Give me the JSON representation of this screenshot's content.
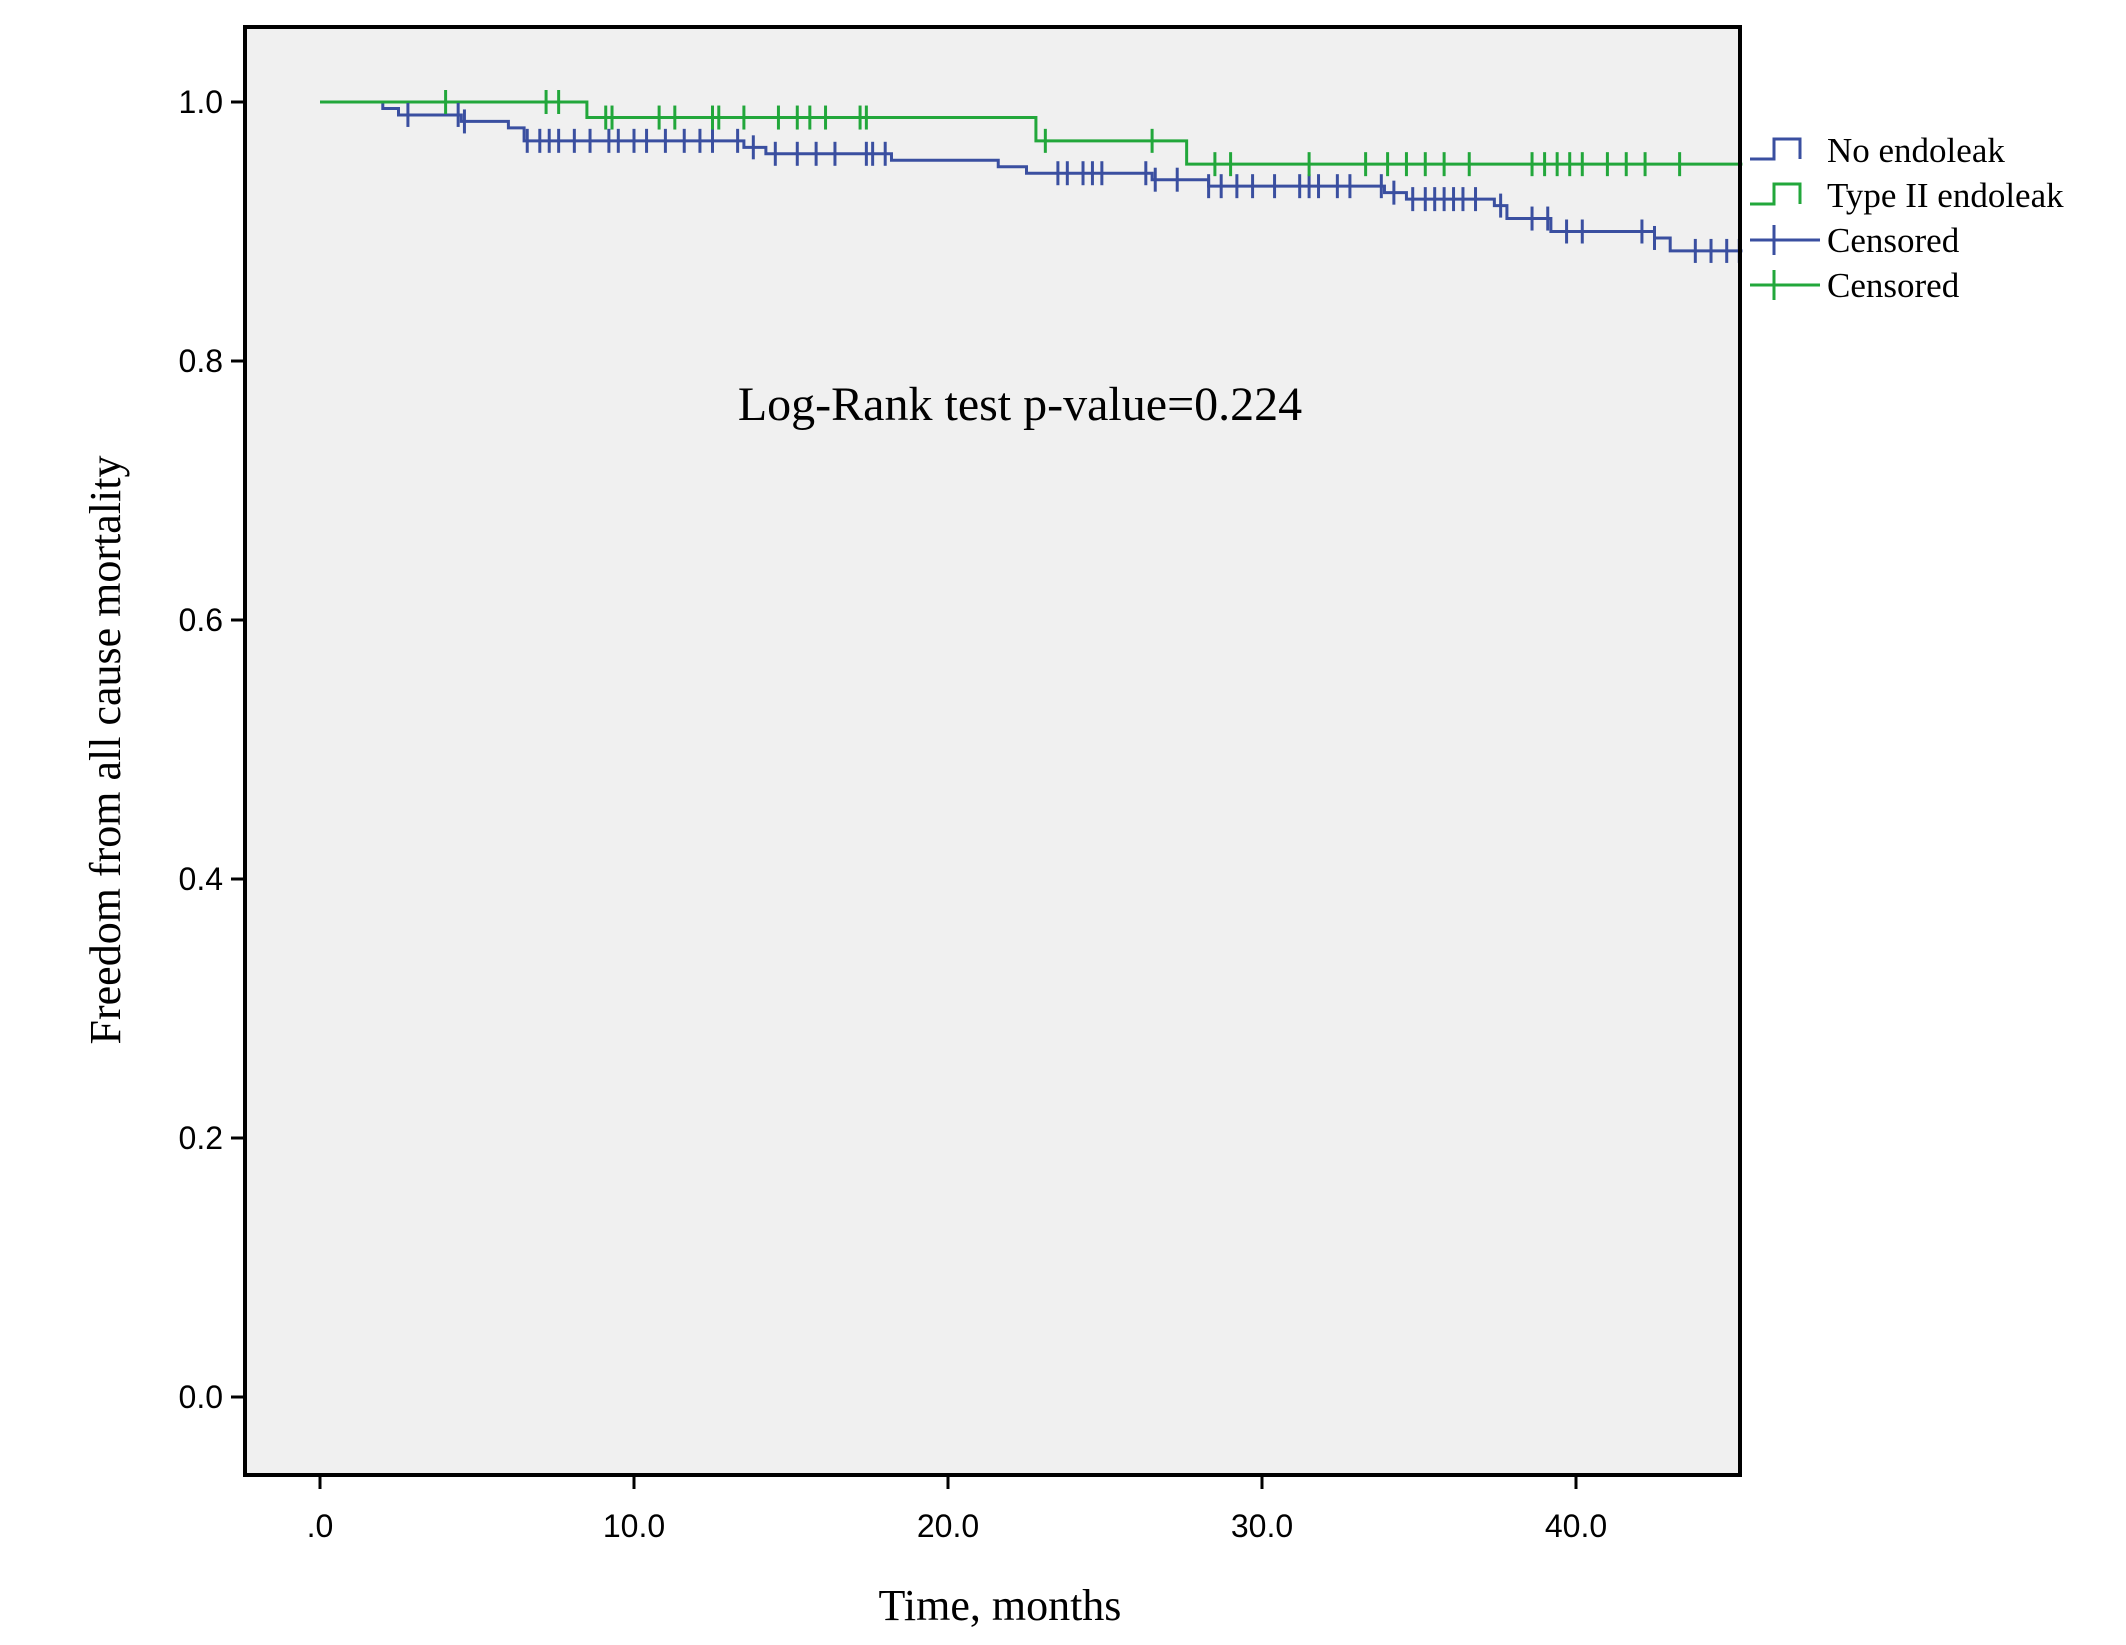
{
  "chart_data": {
    "type": "line",
    "subtype": "kaplan-meier",
    "xlabel": "Time, months",
    "ylabel": "Freedom from all cause mortality",
    "xlim": [
      -2.5,
      45.3
    ],
    "ylim": [
      -0.05,
      1.055
    ],
    "xticks": [
      0,
      10,
      20,
      30,
      40
    ],
    "xtick_labels": [
      ".0",
      "10.0",
      "20.0",
      "30.0",
      "40.0"
    ],
    "yticks": [
      0,
      0.2,
      0.4,
      0.6,
      0.8,
      1.0
    ],
    "ytick_labels": [
      "0.0",
      "0.2",
      "0.4",
      "0.6",
      "0.8",
      "1.0"
    ],
    "annotation": "Log-Rank test p-value=0.224",
    "plot_background": "#f0f0f0",
    "grid": false,
    "legend_position": "outside-right",
    "legend": [
      {
        "label": "No endoleak",
        "marker": "step",
        "color": "#3a4fa0"
      },
      {
        "label": "Type II endoleak",
        "marker": "step",
        "color": "#22a73b"
      },
      {
        "label": "Censored",
        "marker": "plus",
        "color": "#3a4fa0"
      },
      {
        "label": "Censored",
        "marker": "plus",
        "color": "#22a73b"
      }
    ],
    "series": [
      {
        "name": "No endoleak",
        "color": "#3a4fa0",
        "x": [
          0.0,
          2.0,
          2.5,
          4.5,
          6.0,
          6.5,
          13.5,
          14.2,
          18.2,
          21.6,
          22.5,
          26.5,
          28.3,
          33.9,
          34.6,
          37.4,
          37.8,
          39.2,
          42.5,
          43.0,
          45.3
        ],
        "y": [
          1.0,
          0.995,
          0.99,
          0.985,
          0.98,
          0.97,
          0.965,
          0.96,
          0.955,
          0.95,
          0.945,
          0.94,
          0.935,
          0.93,
          0.925,
          0.92,
          0.91,
          0.9,
          0.895,
          0.885,
          0.885
        ],
        "censored_x": [
          2.8,
          4.4,
          4.6,
          6.6,
          7.0,
          7.3,
          7.6,
          8.1,
          8.6,
          9.2,
          9.5,
          10.0,
          10.4,
          11.0,
          11.6,
          12.1,
          12.5,
          13.3,
          13.8,
          14.5,
          15.2,
          15.8,
          16.4,
          17.4,
          17.6,
          18.0,
          23.5,
          23.8,
          24.3,
          24.6,
          24.9,
          26.3,
          26.6,
          27.3,
          28.3,
          28.7,
          29.2,
          29.7,
          30.4,
          31.2,
          31.5,
          31.8,
          32.4,
          32.8,
          33.8,
          34.2,
          34.8,
          35.2,
          35.5,
          35.8,
          36.1,
          36.4,
          36.8,
          37.6,
          38.6,
          39.1,
          39.7,
          40.2,
          42.1,
          42.5,
          43.8,
          44.3,
          44.8,
          45.2
        ]
      },
      {
        "name": "Type II endoleak",
        "color": "#22a73b",
        "x": [
          0.0,
          8.5,
          22.8,
          27.6,
          45.3
        ],
        "y": [
          1.0,
          0.988,
          0.97,
          0.952,
          0.952
        ],
        "censored_x": [
          4.0,
          7.2,
          7.6,
          9.1,
          9.3,
          10.8,
          11.3,
          12.5,
          12.7,
          13.5,
          14.6,
          15.2,
          15.6,
          16.1,
          17.2,
          17.4,
          23.1,
          26.5,
          28.5,
          29.0,
          31.5,
          33.3,
          34.0,
          34.6,
          35.2,
          35.8,
          36.6,
          38.6,
          39.0,
          39.4,
          39.8,
          40.2,
          41.0,
          41.6,
          42.2,
          43.3
        ]
      }
    ]
  }
}
